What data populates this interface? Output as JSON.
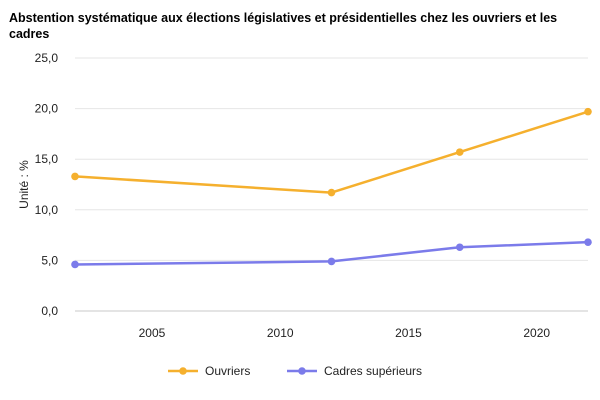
{
  "chart_data": {
    "type": "line",
    "title": "Abstention systématique aux élections législatives et présidentielles chez les ouvriers et les cadres",
    "ylabel": "Unité : %",
    "xlabel": "",
    "x": [
      2002,
      2012,
      2017,
      2022
    ],
    "xlim": [
      2002,
      2022
    ],
    "ylim": [
      0,
      25
    ],
    "x_ticks": [
      "2005",
      "2010",
      "2015",
      "2020"
    ],
    "y_ticks": [
      "0,0",
      "5,0",
      "10,0",
      "15,0",
      "20,0",
      "25,0"
    ],
    "grid": "horizontal",
    "legend_position": "bottom",
    "series": [
      {
        "name": "Ouvriers",
        "color": "#F5B02E",
        "values": [
          13.3,
          11.7,
          15.7,
          19.7
        ]
      },
      {
        "name": "Cadres supérieurs",
        "color": "#7B7BEA",
        "values": [
          4.6,
          4.9,
          6.3,
          6.8
        ]
      }
    ]
  }
}
